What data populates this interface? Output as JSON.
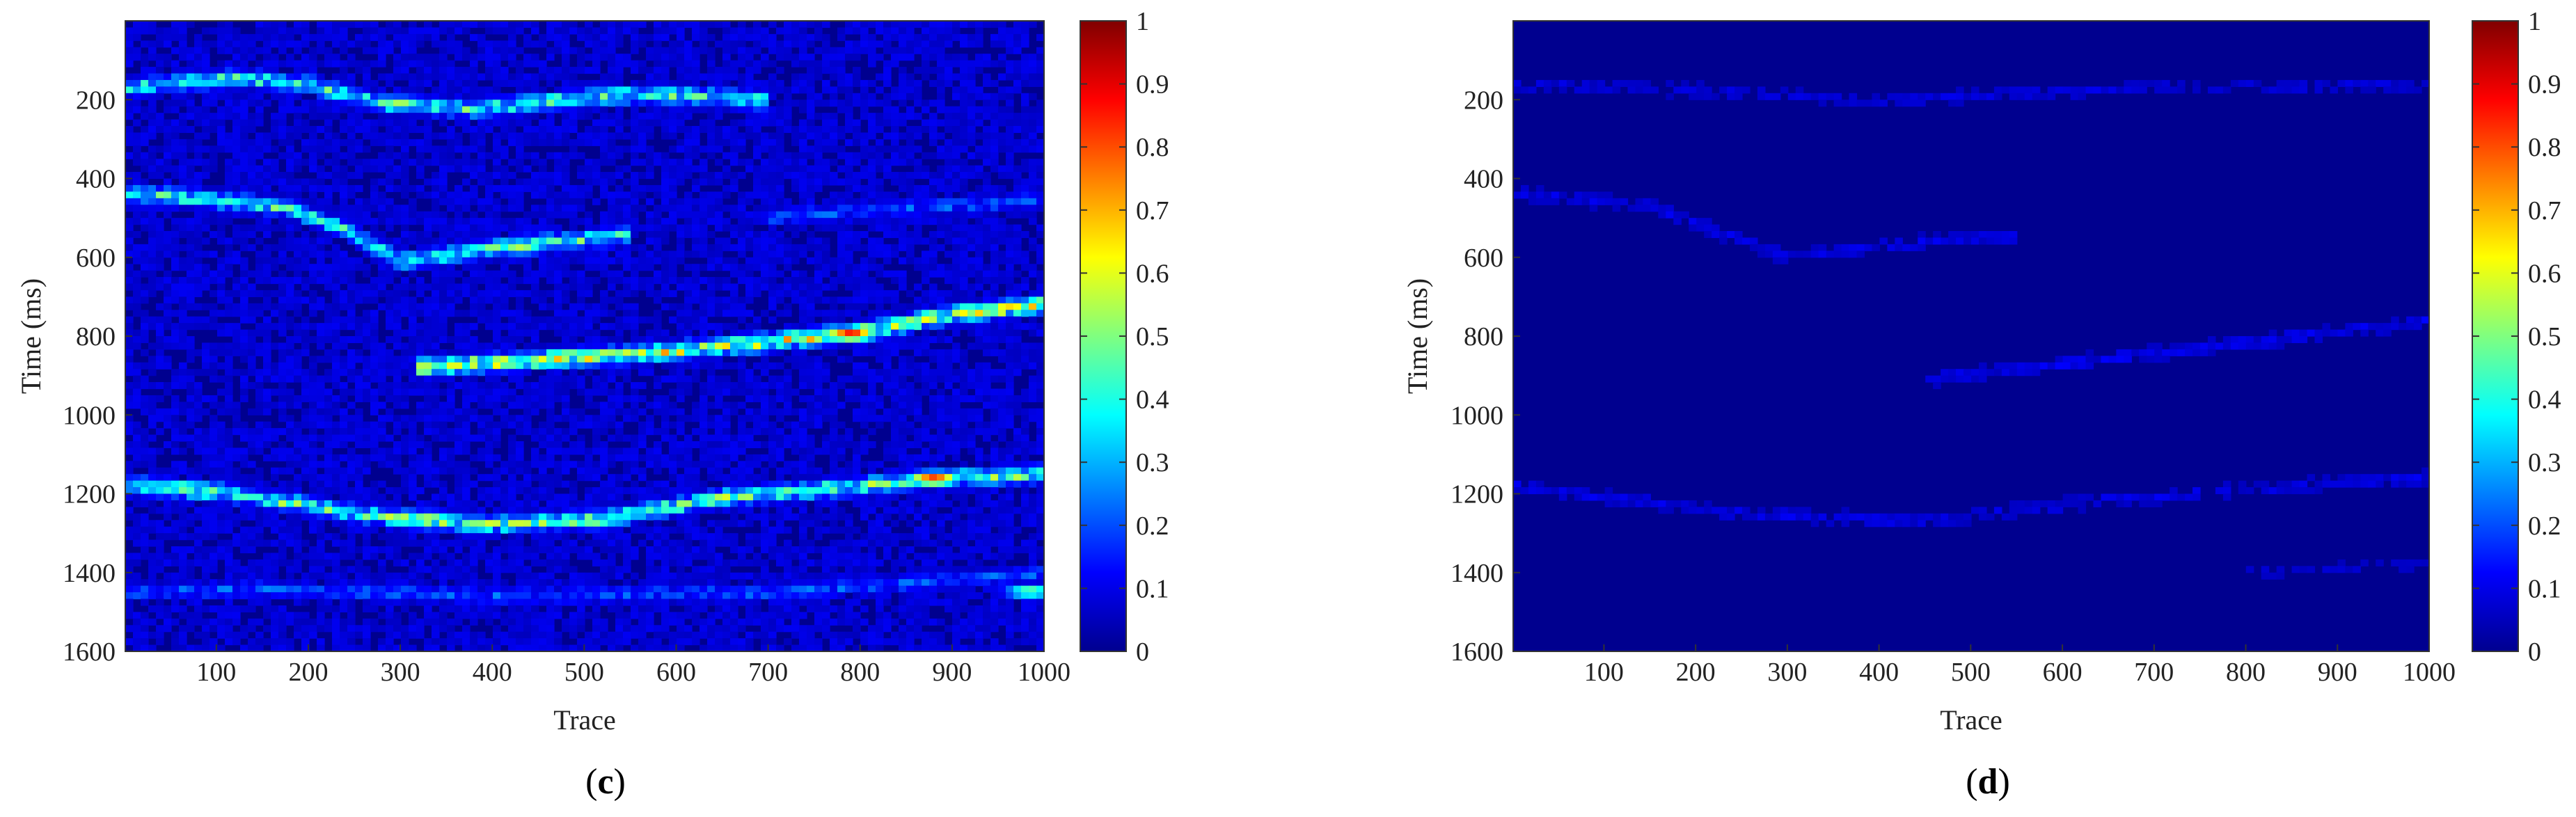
{
  "chart_data": [
    {
      "type": "heatmap",
      "panel_label": "c",
      "xlabel": "Trace",
      "ylabel": "Time (ms)",
      "xlim": [
        1,
        1000
      ],
      "ylim": [
        0,
        1600
      ],
      "y_reversed": true,
      "xticks": [
        100,
        200,
        300,
        400,
        500,
        600,
        700,
        800,
        900,
        1000
      ],
      "yticks": [
        200,
        400,
        600,
        800,
        1000,
        1200,
        1400,
        1600
      ],
      "colorbar": {
        "min": 0,
        "max": 1,
        "ticks": [
          0,
          0.1,
          0.2,
          0.3,
          0.4,
          0.5,
          0.6,
          0.7,
          0.8,
          0.9,
          1
        ],
        "colormap": "jet"
      },
      "background_value": 0.07,
      "events": [
        {
          "points": [
            [
              1,
              170
            ],
            [
              120,
              145
            ],
            [
              200,
              160
            ],
            [
              280,
              210
            ],
            [
              380,
              225
            ],
            [
              480,
              200
            ],
            [
              560,
              185
            ],
            [
              650,
              195
            ],
            [
              700,
              205
            ]
          ],
          "amplitude": 0.45
        },
        {
          "points": [
            [
              1,
              435
            ],
            [
              100,
              455
            ],
            [
              180,
              475
            ],
            [
              240,
              530
            ],
            [
              300,
              610
            ],
            [
              420,
              570
            ],
            [
              550,
              545
            ]
          ],
          "amplitude": 0.45
        },
        {
          "points": [
            [
              700,
              500
            ],
            [
              800,
              480
            ],
            [
              900,
              470
            ],
            [
              1000,
              455
            ]
          ],
          "amplitude": 0.22
        },
        {
          "points": [
            [
              320,
              880
            ],
            [
              450,
              860
            ],
            [
              560,
              845
            ],
            [
              700,
              815
            ],
            [
              800,
              790
            ],
            [
              900,
              745
            ],
            [
              1000,
              720
            ]
          ],
          "amplitude": 0.62
        },
        {
          "points": [
            [
              1,
              1175
            ],
            [
              120,
              1200
            ],
            [
              250,
              1250
            ],
            [
              380,
              1280
            ],
            [
              520,
              1265
            ],
            [
              650,
              1210
            ],
            [
              800,
              1180
            ],
            [
              900,
              1160
            ],
            [
              1000,
              1150
            ]
          ],
          "amplitude": 0.5
        },
        {
          "points": [
            [
              1,
              1450
            ],
            [
              150,
              1440
            ],
            [
              400,
              1460
            ],
            [
              700,
              1450
            ],
            [
              900,
              1420
            ],
            [
              1000,
              1400
            ]
          ],
          "amplitude": 0.22
        }
      ],
      "hotspots": [
        {
          "x": 790,
          "y": 795,
          "value": 0.88
        },
        {
          "x": 880,
          "y": 1162,
          "value": 0.84
        },
        {
          "x": 430,
          "y": 575,
          "value": 0.55
        },
        {
          "x": 300,
          "y": 210,
          "value": 0.55
        },
        {
          "x": 510,
          "y": 1272,
          "value": 0.5
        },
        {
          "x": 330,
          "y": 1262,
          "value": 0.55
        },
        {
          "x": 985,
          "y": 1448,
          "value": 0.5
        }
      ]
    },
    {
      "type": "heatmap",
      "panel_label": "d",
      "xlabel": "Trace",
      "ylabel": "Time (ms)",
      "xlim": [
        1,
        1000
      ],
      "ylim": [
        0,
        1600
      ],
      "y_reversed": true,
      "xticks": [
        100,
        200,
        300,
        400,
        500,
        600,
        700,
        800,
        900,
        1000
      ],
      "yticks": [
        200,
        400,
        600,
        800,
        1000,
        1200,
        1400,
        1600
      ],
      "colorbar": {
        "min": 0,
        "max": 1,
        "ticks": [
          0,
          0.1,
          0.2,
          0.3,
          0.4,
          0.5,
          0.6,
          0.7,
          0.8,
          0.9,
          1
        ],
        "colormap": "jet"
      },
      "background_value": 0.03,
      "events": [
        {
          "points": [
            [
              1,
              160
            ],
            [
              200,
              175
            ],
            [
              400,
              200
            ],
            [
              550,
              185
            ],
            [
              700,
              170
            ],
            [
              1000,
              160
            ]
          ],
          "amplitude": 0.09
        },
        {
          "points": [
            [
              1,
              435
            ],
            [
              150,
              470
            ],
            [
              300,
              600
            ],
            [
              450,
              560
            ],
            [
              550,
              545
            ]
          ],
          "amplitude": 0.1
        },
        {
          "points": [
            [
              450,
              910
            ],
            [
              600,
              870
            ],
            [
              750,
              830
            ],
            [
              900,
              790
            ],
            [
              1000,
              760
            ]
          ],
          "amplitude": 0.11
        },
        {
          "points": [
            [
              1,
              1180
            ],
            [
              250,
              1250
            ],
            [
              450,
              1270
            ],
            [
              650,
              1215
            ],
            [
              900,
              1170
            ],
            [
              1000,
              1160
            ]
          ],
          "amplitude": 0.1
        },
        {
          "points": [
            [
              800,
              1400
            ],
            [
              1000,
              1380
            ]
          ],
          "amplitude": 0.07
        }
      ],
      "hotspots": []
    }
  ]
}
